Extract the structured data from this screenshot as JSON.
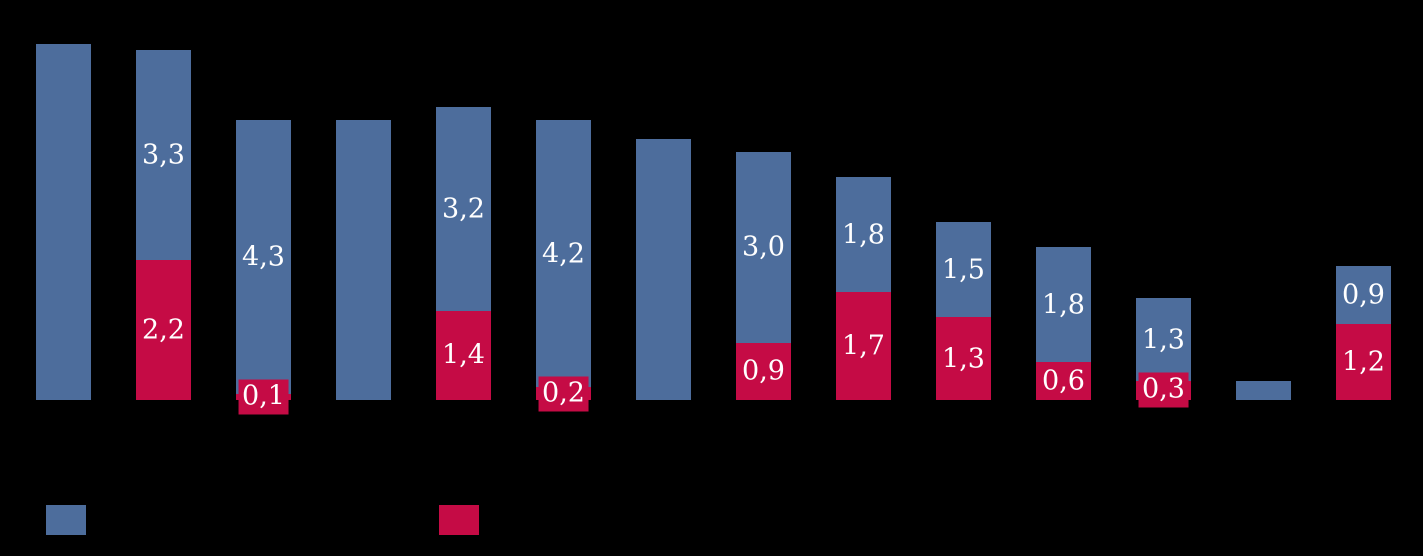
{
  "chart_data": {
    "type": "bar",
    "stacked": true,
    "title": "",
    "xlabel": "",
    "ylabel": "",
    "decimal_separator": ",",
    "grid": false,
    "axes_visible": false,
    "category_labels_visible": false,
    "legend_position": "bottom",
    "background_color": "#000000",
    "label_color": "#ffffff",
    "series": [
      {
        "key": "blue",
        "color": "#4D6D9C",
        "legend_label": ""
      },
      {
        "key": "red",
        "color": "#C50B45",
        "legend_label": ""
      }
    ],
    "bars": [
      {
        "blue": 5.6,
        "red": 0,
        "blue_label": "",
        "red_label": ""
      },
      {
        "blue": 3.3,
        "red": 2.2,
        "blue_label": "3,3",
        "red_label": "2,2"
      },
      {
        "blue": 4.3,
        "red": 0.1,
        "blue_label": "4,3",
        "red_label": "0,1"
      },
      {
        "blue": 4.4,
        "red": 0,
        "blue_label": "",
        "red_label": ""
      },
      {
        "blue": 3.2,
        "red": 1.4,
        "blue_label": "3,2",
        "red_label": "1,4"
      },
      {
        "blue": 4.2,
        "red": 0.2,
        "blue_label": "4,2",
        "red_label": "0,2"
      },
      {
        "blue": 4.1,
        "red": 0,
        "blue_label": "",
        "red_label": ""
      },
      {
        "blue": 3.0,
        "red": 0.9,
        "blue_label": "3,0",
        "red_label": "0,9"
      },
      {
        "blue": 1.8,
        "red": 1.7,
        "blue_label": "1,8",
        "red_label": "1,7"
      },
      {
        "blue": 1.5,
        "red": 1.3,
        "blue_label": "1,5",
        "red_label": "1,3"
      },
      {
        "blue": 1.8,
        "red": 0.6,
        "blue_label": "1,8",
        "red_label": "0,6"
      },
      {
        "blue": 1.3,
        "red": 0.3,
        "blue_label": "1,3",
        "red_label": "0,3"
      },
      {
        "blue": 0.3,
        "red": 0,
        "blue_label": "",
        "red_label": ""
      },
      {
        "blue": 0.9,
        "red": 1.2,
        "blue_label": "0,9",
        "red_label": "1,2"
      }
    ]
  }
}
